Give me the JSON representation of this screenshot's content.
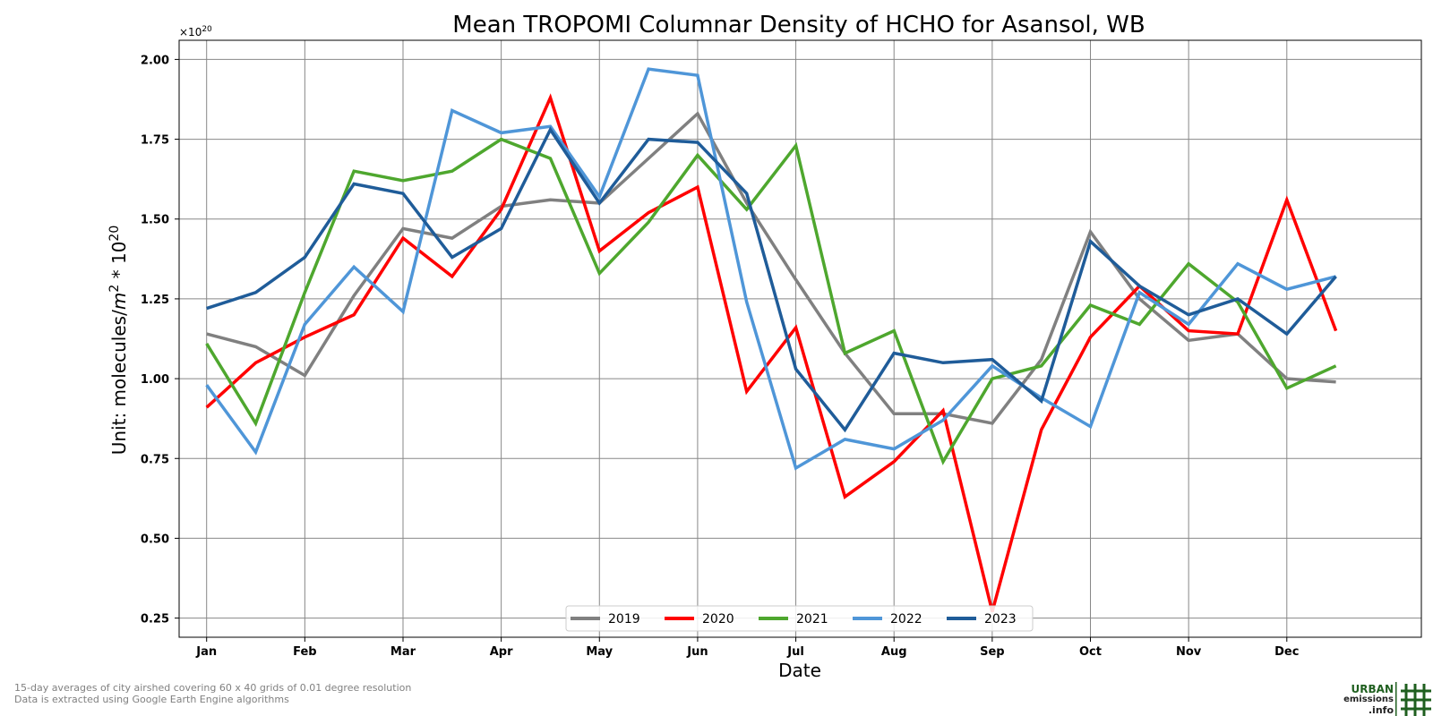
{
  "chart_data": {
    "type": "line",
    "title": "Mean TROPOMI Columnar Density of HCHO for Asansol, WB",
    "xlabel": "Date",
    "ylabel_prefix": "Unit: molecules/",
    "ylabel_m": "m",
    "ylabel_m_exp": "2",
    "ylabel_mid": " * 10",
    "ylabel_exp": "20",
    "offset_base": "×10",
    "offset_exp": "20",
    "x_tick_labels": [
      "Jan",
      "Feb",
      "Mar",
      "Apr",
      "May",
      "Jun",
      "Jul",
      "Aug",
      "Sep",
      "Oct",
      "Nov",
      "Dec"
    ],
    "y_ticks": [
      0.25,
      0.5,
      0.75,
      1.0,
      1.25,
      1.5,
      1.75,
      2.0
    ],
    "ylim": [
      0.19,
      2.06
    ],
    "xlim": [
      -0.28,
      12.37
    ],
    "grid": true,
    "legend_position": "bottom-center",
    "x": [
      0,
      0.5,
      1,
      1.5,
      2,
      2.5,
      3,
      3.5,
      4,
      4.5,
      5,
      5.5,
      6,
      6.5,
      7,
      7.5,
      8,
      8.5,
      9,
      9.5,
      10,
      10.5,
      11,
      11.5
    ],
    "series": [
      {
        "name": "2019",
        "color": "#808080",
        "values": [
          1.14,
          1.1,
          1.01,
          1.26,
          1.47,
          1.44,
          1.54,
          1.56,
          1.55,
          1.69,
          1.83,
          1.55,
          1.31,
          1.08,
          0.89,
          0.89,
          0.86,
          1.06,
          1.46,
          1.25,
          1.12,
          1.14,
          1.0,
          0.99
        ]
      },
      {
        "name": "2020",
        "color": "#ff0000",
        "values": [
          0.91,
          1.05,
          1.13,
          1.2,
          1.44,
          1.32,
          1.53,
          1.88,
          1.4,
          1.52,
          1.6,
          0.96,
          1.16,
          0.63,
          0.74,
          0.9,
          0.27,
          0.84,
          1.13,
          1.29,
          1.15,
          1.14,
          1.56,
          1.15
        ]
      },
      {
        "name": "2021",
        "color": "#4ea72e",
        "values": [
          1.11,
          0.86,
          1.27,
          1.65,
          1.62,
          1.65,
          1.75,
          1.69,
          1.33,
          1.49,
          1.7,
          1.53,
          1.73,
          1.08,
          1.15,
          0.74,
          1.0,
          1.04,
          1.23,
          1.17,
          1.36,
          1.24,
          0.97,
          1.04
        ]
      },
      {
        "name": "2022",
        "color": "#4f96d8",
        "values": [
          0.98,
          0.77,
          1.17,
          1.35,
          1.21,
          1.84,
          1.77,
          1.79,
          1.57,
          1.97,
          1.95,
          1.24,
          0.72,
          0.81,
          0.78,
          0.87,
          1.04,
          0.94,
          0.85,
          1.27,
          1.17,
          1.36,
          1.28,
          1.32
        ]
      },
      {
        "name": "2023",
        "color": "#1f5c99",
        "values": [
          1.22,
          1.27,
          1.38,
          1.61,
          1.58,
          1.38,
          1.47,
          1.78,
          1.55,
          1.75,
          1.74,
          1.58,
          1.03,
          0.84,
          1.08,
          1.05,
          1.06,
          0.93,
          1.43,
          1.29,
          1.2,
          1.25,
          1.14,
          1.32
        ]
      }
    ]
  },
  "footer": {
    "line1": "15-day averages of city airshed covering 60 x 40 grids of 0.01 degree resolution",
    "line2": "Data is extracted using Google Earth Engine algorithms"
  },
  "logo": {
    "line1": "URBAN",
    "line2": "emissions",
    "line3": ".info",
    "icon": "grid-logo-icon",
    "color": "#1f5f1f"
  }
}
